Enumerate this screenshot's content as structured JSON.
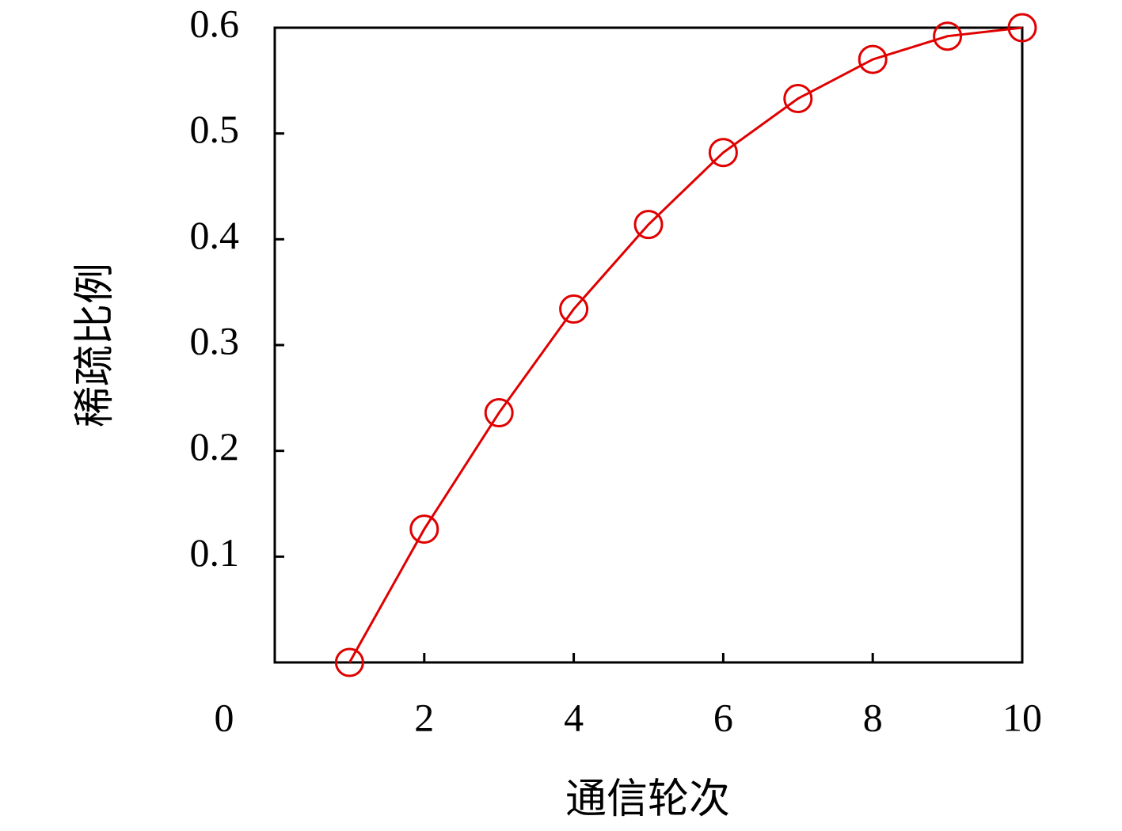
{
  "chart_data": {
    "type": "line",
    "x_label": "通信轮次",
    "y_label": "稀疏比例",
    "x": [
      1,
      2,
      3,
      4,
      5,
      6,
      7,
      8,
      9,
      10
    ],
    "series": [
      {
        "color": "#e00000",
        "marker": "circle",
        "values": [
          0,
          0.126,
          0.236,
          0.334,
          0.414,
          0.482,
          0.533,
          0.57,
          0.592,
          0.6
        ]
      }
    ],
    "xlim": [
      0,
      10
    ],
    "ylim": [
      0,
      0.6
    ],
    "xticks": [
      0,
      2,
      4,
      6,
      8,
      10
    ],
    "yticks": [
      0.1,
      0.2,
      0.3,
      0.4,
      0.5,
      0.6
    ],
    "grid": false
  }
}
